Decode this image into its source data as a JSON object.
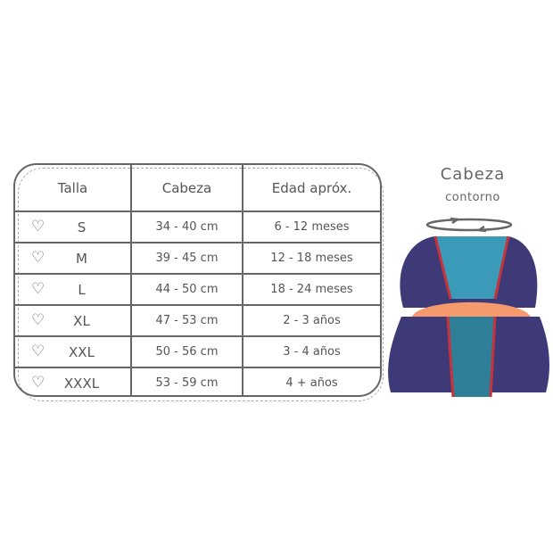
{
  "table": {
    "headers": [
      "Talla",
      "Cabeza",
      "Edad apróx."
    ],
    "rows": [
      {
        "size": "S",
        "head": "34 - 40 cm",
        "age": "6 - 12 meses"
      },
      {
        "size": "M",
        "head": "39 - 45 cm",
        "age": "12 - 18 meses"
      },
      {
        "size": "L",
        "head": "44 - 50 cm",
        "age": "18 - 24 meses"
      },
      {
        "size": "XL",
        "head": "47 - 53 cm",
        "age": "2 - 3 años"
      },
      {
        "size": "XXL",
        "head": "50 - 56 cm",
        "age": "3 - 4 años"
      },
      {
        "size": "XXXL",
        "head": "53 - 59 cm",
        "age": "4 + años"
      }
    ],
    "row_icon": "heart-outline-icon"
  },
  "illustration": {
    "title": "Cabeza",
    "subtitle": "contorno",
    "icon": "circular-arrows-icon",
    "colors": {
      "navy": "#3e3a78",
      "teal": "#3a9ab8",
      "peach": "#f49a6c",
      "red": "#c8323a"
    }
  }
}
